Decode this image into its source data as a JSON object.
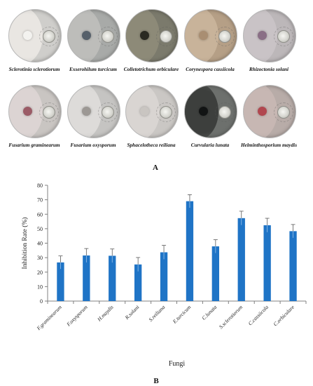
{
  "panel_a": {
    "letter": "A",
    "dishes": [
      {
        "label": "Sclerotinia sclerotiorum",
        "colony_color": "#e9e6e2",
        "spot_color": "#f3f2ef",
        "bg": "#cfcecb"
      },
      {
        "label": "Exserohilum turcicum",
        "colony_color": "#bdbdba",
        "spot_color": "#56606a",
        "bg": "#a8aaa8"
      },
      {
        "label": "Colletotrichum orbiculare",
        "colony_color": "#8d8a78",
        "spot_color": "#2a2a22",
        "bg": "#7b7a6c"
      },
      {
        "label": "Corynespora cassiicola",
        "colony_color": "#c8b39a",
        "spot_color": "#a98e72",
        "bg": "#b59f86"
      },
      {
        "label": "Rhizoctonia solani",
        "colony_color": "#c9c3c6",
        "spot_color": "#8a6f86",
        "bg": "#bcb7b9"
      },
      {
        "label": "Fusarium graminearum",
        "colony_color": "#dcd4d3",
        "spot_color": "#9b5b66",
        "bg": "#c9c5c2"
      },
      {
        "label": "Fusarium oxysporum",
        "colony_color": "#dddbd9",
        "spot_color": "#9c9894",
        "bg": "#c5c4c2"
      },
      {
        "label": "Sphacelotheca reiliana",
        "colony_color": "#d9d5d2",
        "spot_color": "#c9c5c1",
        "bg": "#cac7c4"
      },
      {
        "label": "Curvularia lunata",
        "colony_color": "#3d3f3d",
        "spot_color": "#121414",
        "bg": "#6d706d"
      },
      {
        "label": "Helminthosporium maydis",
        "colony_color": "#c7b7b3",
        "spot_color": "#b1474f",
        "bg": "#b8aca8"
      }
    ]
  },
  "chart_data": {
    "type": "bar",
    "panel_letter": "B",
    "categories": [
      "F.graminearum",
      "F.oxysporum",
      "H.maydis",
      "R.solani",
      "S.reiliana",
      "E.turcicum",
      "C.lunata",
      "S.sclerotiorum",
      "C.cassiicola",
      "C.orbiculare"
    ],
    "values": [
      26.7,
      31.5,
      31.3,
      25.3,
      33.7,
      69.0,
      37.8,
      57.3,
      52.4,
      48.3
    ],
    "errors": [
      4.5,
      4.8,
      4.7,
      4.8,
      4.8,
      4.5,
      4.6,
      4.8,
      4.8,
      4.6
    ],
    "xlabel": "Fungi",
    "ylabel": "Inhibition Rate (%)",
    "ylim": [
      0,
      80
    ],
    "yticks": [
      0,
      10,
      20,
      30,
      40,
      50,
      60,
      70,
      80
    ],
    "bar_color": "#1f74c6",
    "grid": false
  }
}
